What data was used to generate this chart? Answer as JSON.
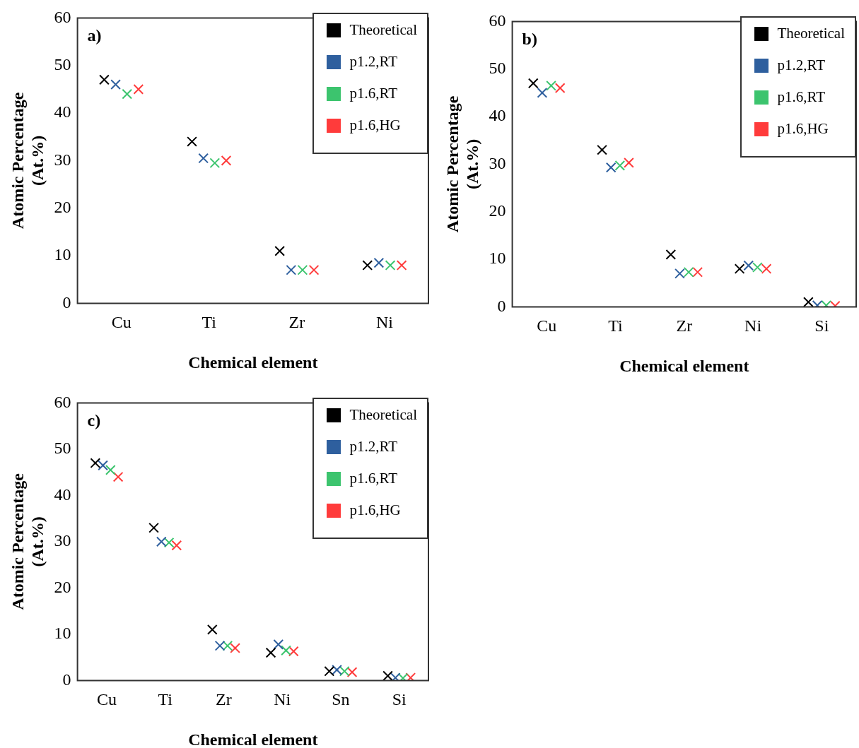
{
  "chart_data": [
    {
      "type": "scatter",
      "title": "a)",
      "xlabel": "Chemical element",
      "ylabel": "Atomic Percentage\n(At.%)",
      "categories": [
        "Cu",
        "Ti",
        "Zr",
        "Ni"
      ],
      "ylim": [
        0,
        60
      ],
      "yticks": [
        0,
        10,
        20,
        30,
        40,
        50,
        60
      ],
      "grid": false,
      "legend": "top right",
      "marker": "cross",
      "series": [
        {
          "name": "Theoretical",
          "color": "#000000",
          "values": [
            47,
            34,
            11,
            8
          ]
        },
        {
          "name": "p1.2,RT",
          "color": "#2e5f9e",
          "values": [
            46,
            30.5,
            7,
            8.5
          ]
        },
        {
          "name": "p1.6,RT",
          "color": "#3cc46e",
          "values": [
            44,
            29.5,
            7,
            8
          ]
        },
        {
          "name": "p1.6,HG",
          "color": "#ff3b3b",
          "values": [
            45,
            30,
            7,
            8
          ]
        }
      ]
    },
    {
      "type": "scatter",
      "title": "b)",
      "xlabel": "Chemical element",
      "ylabel": "Atomic Percentage\n(At.%)",
      "categories": [
        "Cu",
        "Ti",
        "Zr",
        "Ni",
        "Si"
      ],
      "ylim": [
        0,
        60
      ],
      "yticks": [
        0,
        10,
        20,
        30,
        40,
        50,
        60
      ],
      "grid": false,
      "legend": "top right",
      "marker": "cross",
      "series": [
        {
          "name": "Theoretical",
          "color": "#000000",
          "values": [
            47,
            33,
            11,
            8,
            1
          ]
        },
        {
          "name": "p1.2,RT",
          "color": "#2e5f9e",
          "values": [
            45,
            29.3,
            7,
            8.7,
            0.3
          ]
        },
        {
          "name": "p1.6,RT",
          "color": "#3cc46e",
          "values": [
            46.5,
            29.7,
            7.3,
            8.3,
            0.3
          ]
        },
        {
          "name": "p1.6,HG",
          "color": "#ff3b3b",
          "values": [
            46,
            30.3,
            7.3,
            8,
            0.2
          ]
        }
      ]
    },
    {
      "type": "scatter",
      "title": "c)",
      "xlabel": "Chemical element",
      "ylabel": "Atomic Percentage\n(At.%)",
      "categories": [
        "Cu",
        "Ti",
        "Zr",
        "Ni",
        "Sn",
        "Si"
      ],
      "ylim": [
        0,
        60
      ],
      "yticks": [
        0,
        10,
        20,
        30,
        40,
        50,
        60
      ],
      "grid": false,
      "legend": "top right",
      "marker": "cross",
      "series": [
        {
          "name": "Theoretical",
          "color": "#000000",
          "values": [
            47,
            33,
            11,
            6,
            2,
            1
          ]
        },
        {
          "name": "p1.2,RT",
          "color": "#2e5f9e",
          "values": [
            46.5,
            30,
            7.5,
            7.8,
            2.3,
            0.6
          ]
        },
        {
          "name": "p1.6,RT",
          "color": "#3cc46e",
          "values": [
            45.5,
            29.8,
            7.5,
            6.5,
            2,
            0.5
          ]
        },
        {
          "name": "p1.6,HG",
          "color": "#ff3b3b",
          "values": [
            44,
            29.2,
            7,
            6.3,
            1.8,
            0.6
          ]
        }
      ]
    }
  ]
}
